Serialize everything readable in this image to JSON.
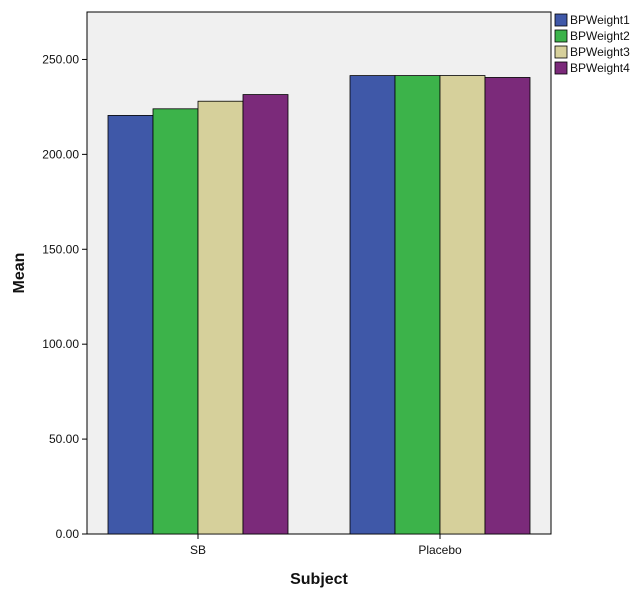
{
  "chart_data": {
    "type": "bar",
    "title": "",
    "xlabel": "Subject",
    "ylabel": "Mean",
    "categories": [
      "SB",
      "Placebo"
    ],
    "series": [
      {
        "name": "BPWeight1",
        "values": [
          220.5,
          241.5
        ],
        "color": "#3F58A8"
      },
      {
        "name": "BPWeight2",
        "values": [
          224.0,
          241.5
        ],
        "color": "#3CB34A"
      },
      {
        "name": "BPWeight3",
        "values": [
          228.0,
          241.5
        ],
        "color": "#D6D09B"
      },
      {
        "name": "BPWeight4",
        "values": [
          231.5,
          240.5
        ],
        "color": "#7B2A7A"
      }
    ],
    "ylim": [
      0,
      275
    ],
    "yticks": [
      0,
      50,
      100,
      150,
      200,
      250
    ],
    "ytick_labels": [
      "0.00",
      "50.00",
      "100.00",
      "150.00",
      "200.00",
      "250.00"
    ],
    "grid": false,
    "legend_position": "top-right",
    "plot_background": "#F0F0F0"
  }
}
